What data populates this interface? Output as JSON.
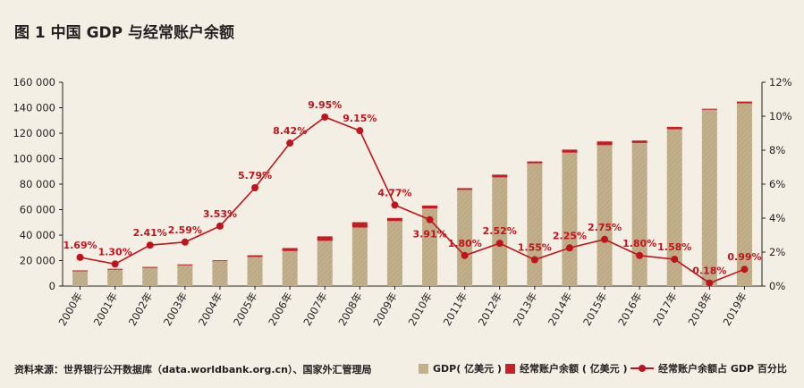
{
  "title": "图 1  中国 GDP 与经常账户余额",
  "source": "资料来源：世界银行公开数据库（data.worldbank.org.cn）、国家外汇管理局",
  "legend": {
    "gdp": "GDP( 亿美元 )",
    "ca": "经常账户余额 ( 亿美元 )",
    "ratio": "经常账户余额占 GDP 百分比"
  },
  "colors": {
    "gdp": "#c2b08c",
    "ca": "#c91f26",
    "line": "#c0131b",
    "label": "#c0131b",
    "background": "#f4efe5"
  },
  "chart_data": {
    "type": "bar",
    "categories": [
      "2000年",
      "2001年",
      "2002年",
      "2003年",
      "2004年",
      "2005年",
      "2006年",
      "2007年",
      "2008年",
      "2009年",
      "2010年",
      "2011年",
      "2012年",
      "2013年",
      "2014年",
      "2015年",
      "2016年",
      "2017年",
      "2018年",
      "2019年"
    ],
    "series": [
      {
        "name": "GDP( 亿美元 )",
        "type": "bar",
        "stack": "total",
        "values": [
          12113,
          13394,
          14705,
          16603,
          19553,
          22860,
          27521,
          35500,
          45944,
          51017,
          60872,
          75515,
          85322,
          96350,
          104757,
          110616,
          112332,
          123104,
          138948,
          143429
        ]
      },
      {
        "name": "经常账户余额 ( 亿美元 )",
        "type": "bar",
        "stack": "total",
        "values": [
          205,
          174,
          354,
          431,
          689,
          1324,
          2318,
          3532,
          4206,
          2433,
          2378,
          1361,
          2154,
          1482,
          2360,
          2930,
          1913,
          1887,
          241,
          1413
        ]
      },
      {
        "name": "经常账户余额占 GDP 百分比",
        "type": "line",
        "axis": "right",
        "values": [
          1.69,
          1.3,
          2.41,
          2.59,
          3.53,
          5.79,
          8.42,
          9.95,
          9.15,
          4.77,
          3.91,
          1.8,
          2.52,
          1.55,
          2.25,
          2.75,
          1.8,
          1.58,
          0.18,
          0.99
        ],
        "labels": [
          "1.69%",
          "1.30%",
          "2.41%",
          "2.59%",
          "3.53%",
          "5.79%",
          "8.42%",
          "9.95%",
          "9.15%",
          "4.77%",
          "3.91%",
          "1.80%",
          "2.52%",
          "1.55%",
          "2.25%",
          "2.75%",
          "1.80%",
          "1.58%",
          "0.18%",
          "0.99%"
        ]
      }
    ],
    "ylim": [
      0,
      160000
    ],
    "yticks": [
      "0",
      "20 000",
      "40 000",
      "60 000",
      "80 000",
      "100 000",
      "120 000",
      "140 000",
      "160 000"
    ],
    "y2lim": [
      0,
      12
    ],
    "y2ticks": [
      "0%",
      "2%",
      "4%",
      "6%",
      "8%",
      "10%",
      "12%"
    ],
    "grid": false,
    "legend_position": "bottom-right"
  }
}
